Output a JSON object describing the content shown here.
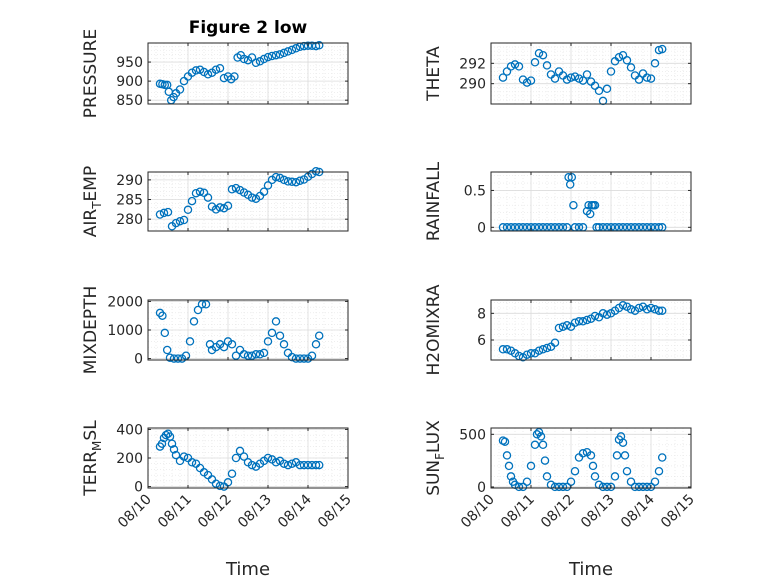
{
  "title": "Figure 2 low",
  "marker_color": "#0072BD",
  "time_ticks": [
    "08/10",
    "08/11",
    "08/12",
    "08/13",
    "08/14",
    "08/15"
  ],
  "chart_data": [
    {
      "type": "scatter",
      "marker": "open-circle",
      "grid": true,
      "title": "Figure 2 low",
      "ylabel": "PRESSURE",
      "xlabel": "",
      "sub": "",
      "xlim": [
        0,
        5
      ],
      "ylim": [
        840,
        1000
      ],
      "yticks": [
        850,
        900,
        950
      ],
      "x": [
        0.3,
        0.36,
        0.42,
        0.48,
        0.52,
        0.58,
        0.64,
        0.7,
        0.8,
        0.9,
        1.0,
        1.1,
        1.2,
        1.3,
        1.4,
        1.5,
        1.6,
        1.7,
        1.8,
        1.9,
        2.0,
        2.08,
        2.16,
        2.24,
        2.32,
        2.4,
        2.5,
        2.6,
        2.7,
        2.8,
        2.9,
        3.0,
        3.1,
        3.2,
        3.3,
        3.4,
        3.5,
        3.6,
        3.7,
        3.8,
        3.9,
        4.0,
        4.1,
        4.2,
        4.28
      ],
      "y": [
        893,
        892,
        890,
        890,
        872,
        850,
        858,
        868,
        878,
        900,
        912,
        922,
        928,
        930,
        924,
        918,
        922,
        930,
        934,
        908,
        912,
        905,
        912,
        962,
        968,
        958,
        955,
        962,
        948,
        952,
        958,
        963,
        966,
        968,
        970,
        974,
        978,
        982,
        986,
        990,
        992,
        993,
        993,
        992,
        994
      ]
    },
    {
      "type": "scatter",
      "marker": "open-circle",
      "grid": true,
      "title": "",
      "ylabel": "THETA",
      "xlabel": "",
      "sub": "",
      "xlim": [
        0,
        5
      ],
      "ylim": [
        288,
        294
      ],
      "yticks": [
        290,
        292
      ],
      "x": [
        0.3,
        0.4,
        0.5,
        0.6,
        0.7,
        0.8,
        0.9,
        1.0,
        1.1,
        1.2,
        1.3,
        1.4,
        1.5,
        1.6,
        1.7,
        1.8,
        1.9,
        2.0,
        2.1,
        2.2,
        2.3,
        2.4,
        2.5,
        2.6,
        2.7,
        2.8,
        2.9,
        3.0,
        3.1,
        3.2,
        3.3,
        3.4,
        3.5,
        3.6,
        3.7,
        3.8,
        3.9,
        4.0,
        4.1,
        4.2,
        4.28
      ],
      "y": [
        290.6,
        291.2,
        291.7,
        291.9,
        291.7,
        290.4,
        290.1,
        290.3,
        292.1,
        293.0,
        292.8,
        291.8,
        290.9,
        290.5,
        291.2,
        290.8,
        290.4,
        290.6,
        290.7,
        290.5,
        290.3,
        290.9,
        290.2,
        289.8,
        289.3,
        288.3,
        289.5,
        291.2,
        292.2,
        292.6,
        292.8,
        292.3,
        291.6,
        290.8,
        290.4,
        291.0,
        290.6,
        290.5,
        292.0,
        293.3,
        293.4
      ]
    },
    {
      "type": "scatter",
      "marker": "open-circle",
      "grid": true,
      "title": "",
      "ylabel": "AIR",
      "sub": "T",
      "ylabel2": "EMP",
      "xlabel": "",
      "xlim": [
        0,
        5
      ],
      "ylim": [
        277,
        292
      ],
      "yticks": [
        280,
        285,
        290
      ],
      "x": [
        0.3,
        0.4,
        0.5,
        0.6,
        0.7,
        0.8,
        0.9,
        1.0,
        1.1,
        1.2,
        1.3,
        1.4,
        1.5,
        1.6,
        1.7,
        1.8,
        1.9,
        2.0,
        2.1,
        2.2,
        2.3,
        2.4,
        2.5,
        2.6,
        2.7,
        2.8,
        2.9,
        3.0,
        3.1,
        3.2,
        3.3,
        3.4,
        3.5,
        3.6,
        3.7,
        3.8,
        3.9,
        4.0,
        4.1,
        4.2,
        4.28
      ],
      "y": [
        281.2,
        281.6,
        281.8,
        278.2,
        279.0,
        279.5,
        279.8,
        282.4,
        284.6,
        286.6,
        287.0,
        286.7,
        285.5,
        283.2,
        282.5,
        283.0,
        282.8,
        283.4,
        287.6,
        287.9,
        287.4,
        286.8,
        286.2,
        285.5,
        285.2,
        285.9,
        287.0,
        288.6,
        290.0,
        290.7,
        290.5,
        290.0,
        289.6,
        289.5,
        289.4,
        289.8,
        290.1,
        290.8,
        291.5,
        292.2,
        292.0
      ]
    },
    {
      "type": "scatter",
      "marker": "open-circle",
      "grid": true,
      "title": "",
      "ylabel": "RAINFALL",
      "xlabel": "",
      "sub": "",
      "xlim": [
        0,
        5
      ],
      "ylim": [
        -0.05,
        0.75
      ],
      "yticks": [
        0,
        0.5
      ],
      "x": [
        0.3,
        0.4,
        0.5,
        0.6,
        0.7,
        0.8,
        0.9,
        1.0,
        1.1,
        1.2,
        1.3,
        1.4,
        1.5,
        1.6,
        1.7,
        1.8,
        1.9,
        1.94,
        1.98,
        2.02,
        2.06,
        2.1,
        2.2,
        2.3,
        2.4,
        2.44,
        2.48,
        2.52,
        2.56,
        2.6,
        2.64,
        2.7,
        2.8,
        2.9,
        3.0,
        3.1,
        3.2,
        3.3,
        3.4,
        3.5,
        3.6,
        3.7,
        3.8,
        3.9,
        4.0,
        4.1,
        4.2,
        4.28
      ],
      "y": [
        0,
        0,
        0,
        0,
        0,
        0,
        0,
        0,
        0,
        0,
        0,
        0,
        0,
        0,
        0,
        0,
        0,
        0.68,
        0.58,
        0.68,
        0.3,
        0,
        0,
        0,
        0.22,
        0.3,
        0.18,
        0.3,
        0.3,
        0.3,
        0,
        0,
        0,
        0,
        0,
        0,
        0,
        0,
        0,
        0,
        0,
        0,
        0,
        0,
        0,
        0,
        0,
        0
      ]
    },
    {
      "type": "scatter",
      "marker": "open-circle",
      "grid": true,
      "title": "",
      "ylabel": "MIXDEPTH",
      "xlabel": "",
      "sub": "",
      "xlim": [
        0,
        5
      ],
      "ylim": [
        -50,
        2050
      ],
      "yticks": [
        0,
        1000,
        2000
      ],
      "x": [
        0.3,
        0.36,
        0.42,
        0.48,
        0.55,
        0.65,
        0.75,
        0.85,
        0.95,
        1.05,
        1.15,
        1.25,
        1.35,
        1.45,
        1.55,
        1.6,
        1.7,
        1.8,
        1.9,
        2.0,
        2.1,
        2.2,
        2.3,
        2.4,
        2.5,
        2.6,
        2.7,
        2.8,
        2.9,
        3.0,
        3.1,
        3.2,
        3.3,
        3.4,
        3.5,
        3.6,
        3.7,
        3.8,
        3.9,
        4.0,
        4.1,
        4.2,
        4.28
      ],
      "y": [
        1600,
        1500,
        900,
        300,
        30,
        0,
        0,
        0,
        100,
        600,
        1300,
        1700,
        1900,
        1900,
        500,
        300,
        400,
        500,
        400,
        600,
        500,
        100,
        300,
        150,
        100,
        100,
        150,
        150,
        200,
        600,
        900,
        1300,
        800,
        500,
        200,
        50,
        0,
        0,
        0,
        0,
        100,
        500,
        800
      ]
    },
    {
      "type": "scatter",
      "marker": "open-circle",
      "grid": true,
      "title": "",
      "ylabel": "H2OMIXRA",
      "xlabel": "",
      "sub": "",
      "xlim": [
        0,
        5
      ],
      "ylim": [
        4.5,
        9
      ],
      "yticks": [
        6,
        8
      ],
      "x": [
        0.3,
        0.4,
        0.5,
        0.6,
        0.7,
        0.8,
        0.9,
        1.0,
        1.1,
        1.2,
        1.3,
        1.4,
        1.5,
        1.6,
        1.7,
        1.8,
        1.9,
        2.0,
        2.1,
        2.2,
        2.3,
        2.4,
        2.5,
        2.6,
        2.7,
        2.8,
        2.9,
        3.0,
        3.1,
        3.2,
        3.3,
        3.4,
        3.5,
        3.6,
        3.7,
        3.8,
        3.9,
        4.0,
        4.1,
        4.2,
        4.28
      ],
      "y": [
        5.3,
        5.3,
        5.2,
        5.0,
        4.8,
        4.7,
        4.9,
        5.0,
        5.0,
        5.2,
        5.3,
        5.4,
        5.5,
        5.8,
        6.9,
        7.0,
        7.1,
        7.0,
        7.3,
        7.4,
        7.4,
        7.5,
        7.6,
        7.8,
        7.7,
        8.0,
        7.9,
        8.0,
        8.2,
        8.4,
        8.6,
        8.5,
        8.3,
        8.2,
        8.4,
        8.5,
        8.3,
        8.4,
        8.3,
        8.2,
        8.2
      ]
    },
    {
      "type": "scatter",
      "marker": "open-circle",
      "grid": true,
      "title": "",
      "ylabel": "TERR",
      "sub": "M",
      "ylabel2": "SL",
      "xlabel": "Time",
      "xlim": [
        0,
        5
      ],
      "ylim": [
        -10,
        410
      ],
      "yticks": [
        0,
        200,
        400
      ],
      "x": [
        0.3,
        0.35,
        0.4,
        0.45,
        0.5,
        0.55,
        0.6,
        0.65,
        0.7,
        0.8,
        0.9,
        1.0,
        1.1,
        1.2,
        1.3,
        1.4,
        1.5,
        1.6,
        1.7,
        1.8,
        1.9,
        2.0,
        2.1,
        2.2,
        2.3,
        2.4,
        2.5,
        2.6,
        2.7,
        2.8,
        2.9,
        3.0,
        3.1,
        3.2,
        3.3,
        3.4,
        3.5,
        3.6,
        3.7,
        3.8,
        3.9,
        4.0,
        4.1,
        4.2,
        4.28
      ],
      "y": [
        280,
        300,
        340,
        360,
        370,
        350,
        300,
        260,
        220,
        180,
        210,
        200,
        170,
        160,
        130,
        100,
        80,
        50,
        20,
        5,
        0,
        30,
        90,
        200,
        250,
        210,
        170,
        150,
        140,
        160,
        180,
        200,
        190,
        170,
        180,
        160,
        150,
        160,
        170,
        150,
        150,
        150,
        150,
        150,
        150
      ]
    },
    {
      "type": "scatter",
      "marker": "open-circle",
      "grid": true,
      "title": "",
      "ylabel": "SUN",
      "sub": "F",
      "ylabel2": "LUX",
      "xlabel": "Time",
      "xlim": [
        0,
        5
      ],
      "ylim": [
        -10,
        560
      ],
      "yticks": [
        0,
        500
      ],
      "x": [
        0.3,
        0.35,
        0.4,
        0.45,
        0.5,
        0.55,
        0.6,
        0.7,
        0.8,
        0.9,
        1.0,
        1.1,
        1.15,
        1.2,
        1.25,
        1.3,
        1.35,
        1.4,
        1.5,
        1.6,
        1.7,
        1.8,
        1.9,
        2.0,
        2.1,
        2.2,
        2.3,
        2.4,
        2.5,
        2.55,
        2.6,
        2.7,
        2.8,
        2.9,
        3.0,
        3.1,
        3.15,
        3.2,
        3.25,
        3.3,
        3.35,
        3.4,
        3.5,
        3.6,
        3.7,
        3.8,
        3.9,
        4.0,
        4.1,
        4.2,
        4.28
      ],
      "y": [
        440,
        430,
        300,
        200,
        100,
        50,
        20,
        0,
        0,
        50,
        200,
        400,
        500,
        520,
        480,
        400,
        250,
        100,
        20,
        0,
        0,
        0,
        0,
        50,
        150,
        280,
        320,
        330,
        300,
        200,
        100,
        20,
        0,
        0,
        0,
        100,
        300,
        450,
        480,
        420,
        300,
        150,
        50,
        0,
        0,
        0,
        0,
        0,
        50,
        150,
        280
      ]
    }
  ]
}
